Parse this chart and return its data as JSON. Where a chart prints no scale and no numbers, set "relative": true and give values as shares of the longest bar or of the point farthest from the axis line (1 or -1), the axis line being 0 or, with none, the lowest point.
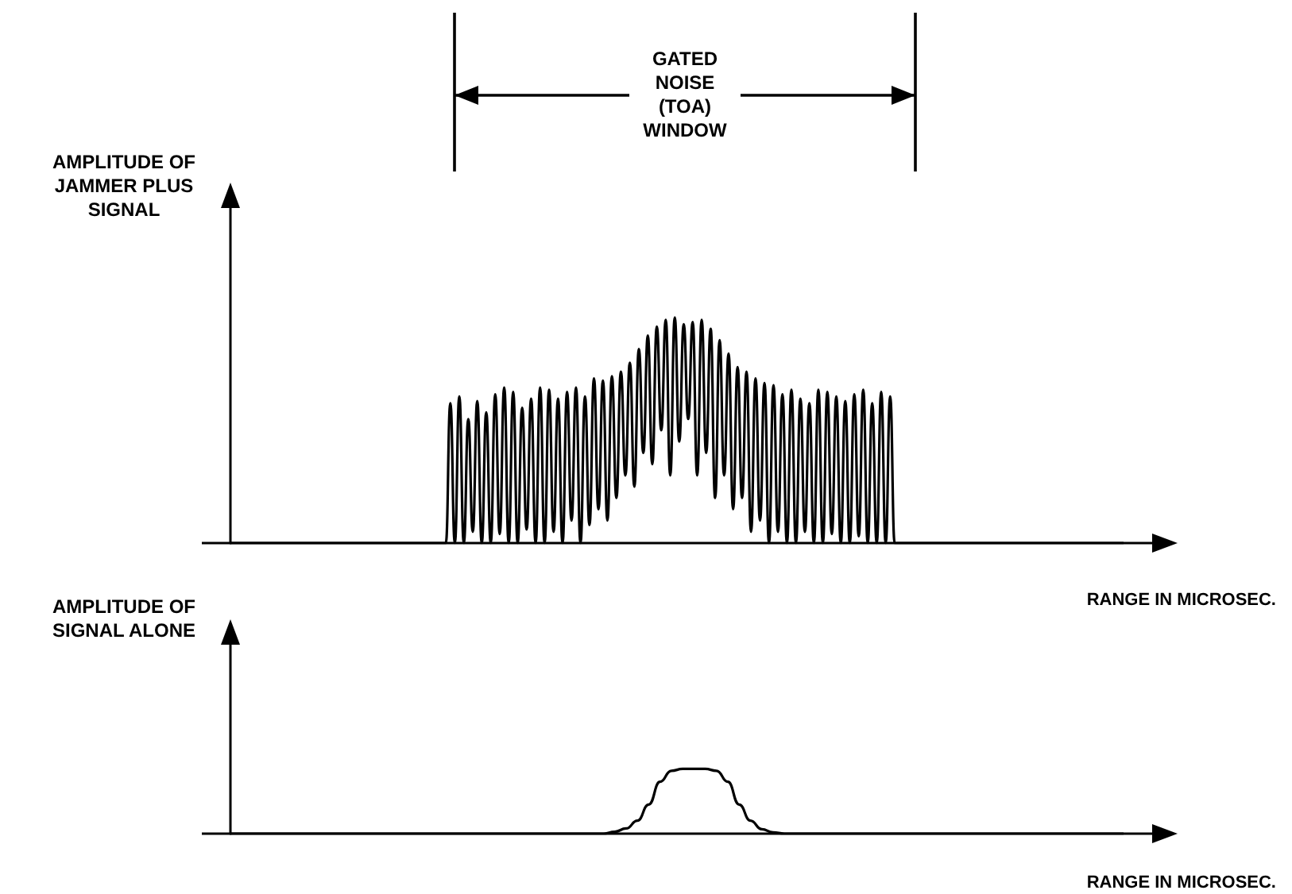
{
  "chart_data": [
    {
      "type": "line",
      "relative": true,
      "ylabel": "AMPLITUDE OF JAMMER PLUS SIGNAL",
      "xlabel": "RANGE IN MICROSEC.",
      "annotations": [
        "GATED NOISE (TOA) WINDOW"
      ],
      "marker": "none",
      "line_style": "solid",
      "color": "#000000",
      "categories": [
        null,
        null,
        null,
        null,
        null,
        null,
        null,
        null,
        null,
        null,
        null,
        null,
        null,
        null,
        null,
        null,
        null,
        null,
        null,
        null,
        null,
        null,
        null,
        null,
        null,
        null,
        null,
        null,
        null,
        null,
        null,
        null,
        null,
        null,
        null,
        null,
        null,
        null,
        null,
        null,
        null,
        null,
        null,
        null,
        null,
        null,
        null,
        null,
        null,
        null,
        null,
        null,
        null,
        null,
        null,
        null,
        null,
        null,
        null,
        null,
        null,
        null,
        null,
        null,
        null,
        null,
        null,
        null,
        null,
        null,
        null,
        null,
        null,
        null,
        null,
        null,
        null,
        null,
        null,
        null,
        null,
        null,
        null,
        null,
        null,
        null,
        null,
        null,
        null,
        null,
        null,
        null,
        null,
        null,
        null,
        null,
        null,
        null,
        null,
        null,
        null,
        null,
        null,
        null,
        null,
        null,
        null,
        null,
        null,
        null,
        null,
        null,
        null,
        null,
        null,
        null,
        null,
        null,
        null,
        null,
        null,
        null,
        null,
        null,
        null,
        null,
        null,
        null,
        null,
        null,
        null,
        null,
        null,
        null,
        null,
        null,
        null,
        null,
        null,
        null,
        null,
        null,
        null,
        null,
        null,
        null,
        null,
        null,
        null,
        null,
        null,
        null,
        null,
        null,
        null,
        null,
        null,
        null,
        null,
        null,
        null,
        null,
        null,
        null,
        null,
        null,
        null,
        null,
        null,
        null,
        null,
        null,
        null,
        null,
        null,
        null,
        null,
        null,
        null,
        null,
        null,
        null,
        null,
        null,
        null,
        null,
        null,
        null,
        null,
        null,
        null,
        null,
        null,
        null,
        null,
        null,
        null,
        null,
        null,
        null
      ],
      "values": [
        0,
        0,
        0,
        0,
        0,
        0,
        0,
        0,
        0,
        0,
        0,
        0,
        0,
        0,
        0,
        0,
        0,
        0,
        0,
        0,
        0,
        0,
        0,
        0,
        0,
        0,
        0,
        0,
        0,
        0,
        0,
        0,
        0,
        0,
        0,
        0,
        0,
        0,
        0,
        0,
        0,
        0,
        0,
        0,
        0,
        0,
        0,
        0,
        0,
        0.62,
        0,
        0.65,
        0,
        0.55,
        0.05,
        0.63,
        0,
        0.58,
        0,
        0.66,
        0.04,
        0.69,
        0,
        0.67,
        0,
        0.6,
        0.06,
        0.64,
        0,
        0.69,
        0,
        0.68,
        0.05,
        0.64,
        0,
        0.67,
        0.1,
        0.69,
        0,
        0.65,
        0.08,
        0.73,
        0.15,
        0.72,
        0.1,
        0.74,
        0.2,
        0.76,
        0.3,
        0.8,
        0.25,
        0.86,
        0.4,
        0.92,
        0.35,
        0.96,
        0.5,
        0.99,
        0.3,
        1,
        0.45,
        0.97,
        0.55,
        0.98,
        0.3,
        0.99,
        0.4,
        0.95,
        0.2,
        0.9,
        0.3,
        0.84,
        0.15,
        0.78,
        0.2,
        0.76,
        0.05,
        0.73,
        0.1,
        0.71,
        0,
        0.7,
        0.05,
        0.66,
        0,
        0.68,
        0,
        0.64,
        0.05,
        0.62,
        0,
        0.68,
        0,
        0.67,
        0.04,
        0.65,
        0,
        0.63,
        0,
        0.66,
        0.03,
        0.68,
        0,
        0.62,
        0,
        0.67,
        0,
        0.65,
        0,
        0,
        0,
        0,
        0,
        0,
        0,
        0,
        0,
        0,
        0,
        0,
        0,
        0,
        0,
        0,
        0,
        0,
        0,
        0,
        0,
        0,
        0,
        0,
        0,
        0,
        0,
        0,
        0,
        0,
        0,
        0,
        0,
        0,
        0,
        0,
        0,
        0,
        0,
        0,
        0,
        0,
        0,
        0,
        0,
        0,
        0,
        0,
        0,
        0,
        0,
        0
      ]
    },
    {
      "type": "line",
      "relative": true,
      "ylabel": "AMPLITUDE OF SIGNAL ALONE",
      "xlabel": "RANGE IN MICROSEC.",
      "marker": "none",
      "line_style": "solid",
      "color": "#000000",
      "categories": [
        null,
        null,
        null,
        null,
        null,
        null,
        null,
        null,
        null,
        null,
        null,
        null,
        null,
        null,
        null,
        null,
        null,
        null,
        null,
        null,
        null,
        null,
        null,
        null,
        null,
        null,
        null,
        null,
        null,
        null,
        null,
        null,
        null,
        null,
        null,
        null,
        null,
        null,
        null,
        null,
        null,
        null,
        null,
        null,
        null,
        null,
        null,
        null,
        null,
        null,
        null,
        null,
        null,
        null,
        null,
        null,
        null,
        null,
        null,
        null,
        null,
        null,
        null,
        null,
        null,
        null,
        null,
        null,
        null,
        null,
        null,
        null,
        null,
        null,
        null,
        null,
        null,
        null,
        null,
        null
      ],
      "values": [
        0,
        0,
        0,
        0,
        0,
        0,
        0,
        0,
        0,
        0,
        0,
        0,
        0,
        0,
        0,
        0,
        0,
        0,
        0,
        0,
        0,
        0,
        0,
        0,
        0,
        0,
        0,
        0,
        0,
        0,
        0,
        0,
        0,
        0,
        0.03,
        0.08,
        0.2,
        0.45,
        0.8,
        0.97,
        1,
        1,
        1,
        0.97,
        0.8,
        0.45,
        0.2,
        0.07,
        0.02,
        0,
        0,
        0,
        0,
        0,
        0,
        0,
        0,
        0,
        0,
        0,
        0,
        0,
        0,
        0,
        0,
        0,
        0,
        0,
        0,
        0,
        0,
        0,
        0,
        0,
        0,
        0,
        0,
        0,
        0,
        0
      ]
    }
  ]
}
